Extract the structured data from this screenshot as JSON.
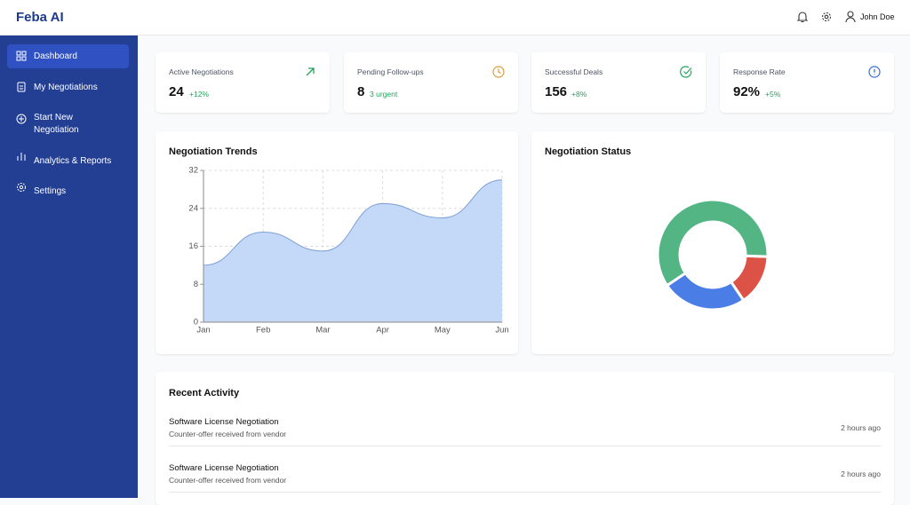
{
  "header": {
    "brand": "Feba AI",
    "user": "John Doe"
  },
  "sidebar": {
    "items": [
      "Dashboard",
      "My Negotiations",
      "Start New Negotiation",
      "Analytics & Reports",
      "Settings"
    ]
  },
  "stats": [
    {
      "label": "Active Negotiations",
      "value": "24",
      "delta": "+12%"
    },
    {
      "label": "Pending Follow-ups",
      "value": "8",
      "delta": "3 urgent"
    },
    {
      "label": "Successful Deals",
      "value": "156",
      "delta": "+8%"
    },
    {
      "label": "Response Rate",
      "value": "92%",
      "delta": "+5%"
    }
  ],
  "chart_data": [
    {
      "type": "area",
      "title": "Negotiation Trends",
      "categories": [
        "Jan",
        "Feb",
        "Mar",
        "Apr",
        "May",
        "Jun"
      ],
      "values": [
        12,
        19,
        15,
        25,
        22,
        30
      ],
      "color": "#7c9fd6",
      "fill": "#c3d9f7",
      "ylim": [
        0,
        32
      ],
      "yticks": [
        0,
        8,
        16,
        24,
        32
      ],
      "grid": true
    },
    {
      "type": "doughnut",
      "title": "Negotiation Status",
      "values": [
        15,
        25,
        60
      ],
      "colors": [
        "#dc5246",
        "#4a7ee6",
        "#52b583"
      ]
    }
  ],
  "activity": {
    "title": "Recent Activity",
    "items": [
      {
        "title": "Software License Negotiation",
        "subtitle": "Counter-offer received from vendor",
        "time": "2 hours ago"
      },
      {
        "title": "Software License Negotiation",
        "subtitle": "Counter-offer received from vendor",
        "time": "2 hours ago"
      }
    ]
  }
}
